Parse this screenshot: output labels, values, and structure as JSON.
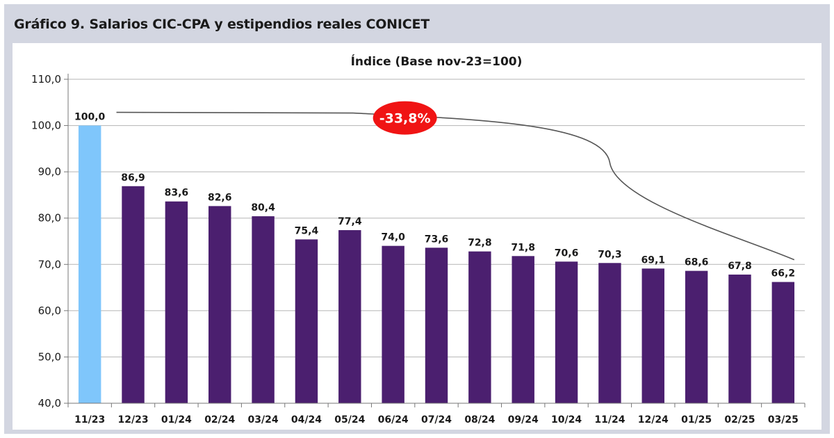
{
  "header": {
    "title": "Gráfico 9. Salarios CIC-CPA y estipendios reales CONICET"
  },
  "colors": {
    "frame": "#d3d6e1",
    "bar_highlight": "#7fc6fb",
    "bar_default": "#4b1f6f",
    "callout": "#f01414",
    "trend_line": "#555555",
    "grid": "#b5b5b5"
  },
  "annotation": {
    "label": "-33,8%"
  },
  "chart_data": {
    "type": "bar",
    "title": "Índice (Base nov-23=100)",
    "xlabel": "",
    "ylabel": "",
    "ylim": [
      40,
      110
    ],
    "yticks": [
      "40,0",
      "50,0",
      "60,0",
      "70,0",
      "80,0",
      "90,0",
      "100,0",
      "110,0"
    ],
    "grid": true,
    "categories": [
      "11/23",
      "12/23",
      "01/24",
      "02/24",
      "03/24",
      "04/24",
      "05/24",
      "06/24",
      "07/24",
      "08/24",
      "09/24",
      "10/24",
      "11/24",
      "12/24",
      "01/25",
      "02/25",
      "03/25"
    ],
    "values": [
      100.0,
      86.9,
      83.6,
      82.6,
      80.4,
      75.4,
      77.4,
      74.0,
      73.6,
      72.8,
      71.8,
      70.6,
      70.3,
      69.1,
      68.6,
      67.8,
      66.2
    ],
    "value_labels": [
      "100,0",
      "86,9",
      "83,6",
      "82,6",
      "80,4",
      "75,4",
      "77,4",
      "74,0",
      "73,6",
      "72,8",
      "71,8",
      "70,6",
      "70,3",
      "69,1",
      "68,6",
      "67,8",
      "66,2"
    ],
    "highlight_index": 0
  }
}
